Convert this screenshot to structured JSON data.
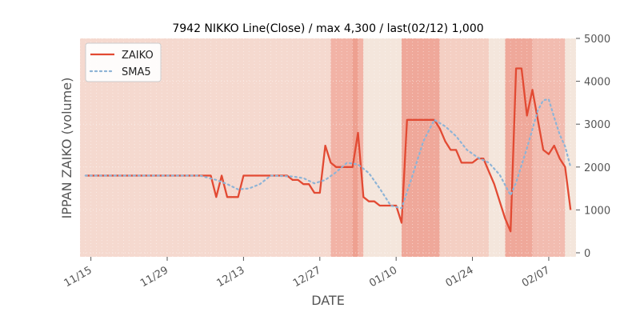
{
  "chart_data": {
    "type": "line",
    "title": "7942 NIKKO Line(Close) / max 4,300 / last(02/12) 1,000",
    "xlabel": "DATE",
    "ylabel": "IPPAN ZAIKO (volume)",
    "ylim": [
      0,
      5000
    ],
    "xlim": [
      "2023-11-13",
      "2024-02-12"
    ],
    "yticks": [
      0,
      1000,
      2000,
      3000,
      4000,
      5000
    ],
    "xticks": [
      {
        "date": "2023-11-15",
        "label": "11/15"
      },
      {
        "date": "2023-11-29",
        "label": "11/29"
      },
      {
        "date": "2023-12-13",
        "label": "12/13"
      },
      {
        "date": "2023-12-27",
        "label": "12/27"
      },
      {
        "date": "2024-01-10",
        "label": "01/10"
      },
      {
        "date": "2024-01-24",
        "label": "01/24"
      },
      {
        "date": "2024-02-07",
        "label": "02/07"
      }
    ],
    "legend_position": "top-left",
    "grid": true,
    "series": [
      {
        "name": "ZAIKO",
        "color": "#e24a33",
        "style": "solid",
        "points": [
          [
            "2023-11-14",
            1800
          ],
          [
            "2023-11-15",
            1800
          ],
          [
            "2023-11-16",
            1800
          ],
          [
            "2023-11-17",
            1800
          ],
          [
            "2023-11-20",
            1800
          ],
          [
            "2023-11-21",
            1800
          ],
          [
            "2023-11-22",
            1800
          ],
          [
            "2023-11-24",
            1800
          ],
          [
            "2023-11-27",
            1800
          ],
          [
            "2023-11-28",
            1800
          ],
          [
            "2023-11-29",
            1800
          ],
          [
            "2023-11-30",
            1800
          ],
          [
            "2023-12-01",
            1800
          ],
          [
            "2023-12-04",
            1800
          ],
          [
            "2023-12-05",
            1800
          ],
          [
            "2023-12-06",
            1800
          ],
          [
            "2023-12-07",
            1800
          ],
          [
            "2023-12-08",
            1300
          ],
          [
            "2023-12-09",
            1800
          ],
          [
            "2023-12-10",
            1300
          ],
          [
            "2023-12-11",
            1300
          ],
          [
            "2023-12-12",
            1300
          ],
          [
            "2023-12-13",
            1800
          ],
          [
            "2023-12-14",
            1800
          ],
          [
            "2023-12-15",
            1800
          ],
          [
            "2023-12-18",
            1800
          ],
          [
            "2023-12-19",
            1800
          ],
          [
            "2023-12-20",
            1800
          ],
          [
            "2023-12-21",
            1800
          ],
          [
            "2023-12-22",
            1700
          ],
          [
            "2023-12-23",
            1700
          ],
          [
            "2023-12-24",
            1600
          ],
          [
            "2023-12-25",
            1600
          ],
          [
            "2023-12-26",
            1400
          ],
          [
            "2023-12-27",
            1400
          ],
          [
            "2023-12-28",
            2500
          ],
          [
            "2023-12-29",
            2100
          ],
          [
            "2023-12-30",
            2000
          ],
          [
            "2023-12-31",
            2000
          ],
          [
            "2024-01-01",
            2000
          ],
          [
            "2024-01-02",
            2000
          ],
          [
            "2024-01-03",
            2800
          ],
          [
            "2024-01-04",
            1300
          ],
          [
            "2024-01-05",
            1200
          ],
          [
            "2024-01-06",
            1200
          ],
          [
            "2024-01-07",
            1100
          ],
          [
            "2024-01-08",
            1100
          ],
          [
            "2024-01-09",
            1100
          ],
          [
            "2024-01-10",
            1100
          ],
          [
            "2024-01-11",
            700
          ],
          [
            "2024-01-12",
            3100
          ],
          [
            "2024-01-13",
            3100
          ],
          [
            "2024-01-14",
            3100
          ],
          [
            "2024-01-15",
            3100
          ],
          [
            "2024-01-16",
            3100
          ],
          [
            "2024-01-17",
            3100
          ],
          [
            "2024-01-18",
            2900
          ],
          [
            "2024-01-19",
            2600
          ],
          [
            "2024-01-20",
            2400
          ],
          [
            "2024-01-21",
            2400
          ],
          [
            "2024-01-22",
            2100
          ],
          [
            "2024-01-23",
            2100
          ],
          [
            "2024-01-24",
            2100
          ],
          [
            "2024-01-25",
            2200
          ],
          [
            "2024-01-26",
            2200
          ],
          [
            "2024-01-27",
            1900
          ],
          [
            "2024-01-28",
            1600
          ],
          [
            "2024-01-29",
            1200
          ],
          [
            "2024-01-30",
            800
          ],
          [
            "2024-01-31",
            500
          ],
          [
            "2024-02-01",
            4300
          ],
          [
            "2024-02-02",
            4300
          ],
          [
            "2024-02-03",
            3200
          ],
          [
            "2024-02-04",
            3800
          ],
          [
            "2024-02-05",
            3100
          ],
          [
            "2024-02-06",
            2400
          ],
          [
            "2024-02-07",
            2300
          ],
          [
            "2024-02-08",
            2500
          ],
          [
            "2024-02-09",
            2200
          ],
          [
            "2024-02-10",
            2000
          ],
          [
            "2024-02-11",
            1000
          ]
        ]
      },
      {
        "name": "SMA5",
        "color": "#8eb4d6",
        "style": "dotted",
        "points": [
          [
            "2023-11-14",
            1800
          ],
          [
            "2023-11-24",
            1800
          ],
          [
            "2023-12-05",
            1800
          ],
          [
            "2023-12-08",
            1700
          ],
          [
            "2023-12-10",
            1600
          ],
          [
            "2023-12-12",
            1480
          ],
          [
            "2023-12-14",
            1500
          ],
          [
            "2023-12-16",
            1600
          ],
          [
            "2023-12-18",
            1800
          ],
          [
            "2023-12-22",
            1780
          ],
          [
            "2023-12-24",
            1740
          ],
          [
            "2023-12-26",
            1620
          ],
          [
            "2023-12-28",
            1700
          ],
          [
            "2023-12-30",
            1880
          ],
          [
            "2024-01-01",
            2100
          ],
          [
            "2024-01-03",
            2060
          ],
          [
            "2024-01-05",
            1860
          ],
          [
            "2024-01-07",
            1500
          ],
          [
            "2024-01-09",
            1100
          ],
          [
            "2024-01-11",
            1040
          ],
          [
            "2024-01-13",
            1800
          ],
          [
            "2024-01-15",
            2600
          ],
          [
            "2024-01-17",
            3100
          ],
          [
            "2024-01-19",
            2950
          ],
          [
            "2024-01-21",
            2720
          ],
          [
            "2024-01-23",
            2400
          ],
          [
            "2024-01-25",
            2220
          ],
          [
            "2024-01-27",
            2100
          ],
          [
            "2024-01-29",
            1820
          ],
          [
            "2024-01-31",
            1340
          ],
          [
            "2024-02-01",
            1640
          ],
          [
            "2024-02-03",
            2440
          ],
          [
            "2024-02-05",
            3320
          ],
          [
            "2024-02-06",
            3560
          ],
          [
            "2024-02-07",
            3580
          ],
          [
            "2024-02-08",
            3160
          ],
          [
            "2024-02-09",
            2760
          ],
          [
            "2024-02-10",
            2480
          ],
          [
            "2024-02-11",
            2000
          ]
        ]
      }
    ],
    "background_bands": [
      {
        "start": "2023-11-13",
        "end": "2023-12-29",
        "color": "#f5d9cf"
      },
      {
        "start": "2023-12-29",
        "end": "2024-01-04",
        "color": "#f2b3a6"
      },
      {
        "start": "2024-01-02",
        "end": "2024-01-03",
        "color": "#eea090"
      },
      {
        "start": "2024-01-04",
        "end": "2024-01-11",
        "color": "#f4e6dc"
      },
      {
        "start": "2024-01-11",
        "end": "2024-01-18",
        "color": "#efa89a"
      },
      {
        "start": "2024-01-18",
        "end": "2024-01-27",
        "color": "#f4cfc3"
      },
      {
        "start": "2024-01-27",
        "end": "2024-01-30",
        "color": "#f4e6dc"
      },
      {
        "start": "2024-01-30",
        "end": "2024-02-04",
        "color": "#efa89a"
      },
      {
        "start": "2024-02-04",
        "end": "2024-02-10",
        "color": "#f2bcb0"
      },
      {
        "start": "2024-02-10",
        "end": "2024-02-12",
        "color": "#f4e6dc"
      }
    ]
  }
}
